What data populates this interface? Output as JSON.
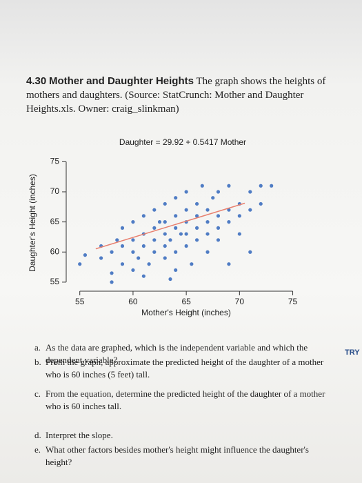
{
  "header": {
    "number": "4.30",
    "title": "Mother and Daughter Heights",
    "text": "The graph shows the heights of mothers and daughters. (Source: StatCrunch: Mother and Daughter Heights.xls. Owner: craig_slinkman)"
  },
  "chart_data": {
    "type": "scatter",
    "title": "Daughter = 29.92 + 0.5417 Mother",
    "xlabel": "Mother's Height (inches)",
    "ylabel": "Daughter's Height (inches)",
    "xlim": [
      54.5,
      76
    ],
    "ylim": [
      54.3,
      75.5
    ],
    "xticks": [
      55,
      60,
      65,
      70,
      75
    ],
    "yticks": [
      55,
      60,
      65,
      70,
      75
    ],
    "series": [
      {
        "type": "scatter",
        "color": "#4f7cc4",
        "x": [
          55,
          55.5,
          57,
          57,
          58,
          58,
          58.5,
          59,
          59,
          59,
          60,
          60,
          60,
          60,
          60.5,
          61,
          61,
          61,
          61.5,
          62,
          62,
          62,
          62,
          62.5,
          63,
          63,
          63,
          63,
          63,
          63.5,
          64,
          64,
          64,
          64,
          64,
          64.5,
          65,
          65,
          65,
          65,
          65,
          65.5,
          66,
          66,
          66,
          66,
          66.5,
          67,
          67,
          67,
          67,
          67.5,
          68,
          68,
          68,
          68,
          69,
          69,
          69,
          69,
          70,
          70,
          70,
          71,
          71,
          71,
          72,
          72,
          73,
          58,
          61,
          63.5
        ],
        "values": [
          58,
          59.5,
          59,
          61,
          56.5,
          60,
          62,
          58,
          61,
          64,
          57,
          60,
          62,
          65,
          59,
          61,
          63,
          66,
          58,
          60,
          62,
          64,
          67,
          65,
          59,
          61,
          63,
          65,
          68,
          62,
          57,
          60,
          64,
          66,
          69,
          63,
          61,
          63,
          65,
          67,
          70,
          58,
          62,
          64,
          66,
          68,
          71,
          60,
          63,
          65,
          67,
          69,
          62,
          64,
          66,
          70,
          58,
          65,
          67,
          71,
          63,
          66,
          68,
          60,
          67,
          70,
          68,
          71,
          71,
          55,
          56,
          55.5
        ]
      },
      {
        "type": "line",
        "color": "#e8806f",
        "x": [
          56.5,
          70.5
        ],
        "values": [
          60.53,
          68.11
        ]
      }
    ]
  },
  "questions": [
    {
      "label": "a.",
      "text": "As the data are graphed, which is the independent variable and which the dependent variable?"
    },
    {
      "label": "b.",
      "text": "From the graph, approximate the predicted height of the daughter of a mother who is 60 inches (5 feet) tall."
    },
    {
      "label": "c.",
      "text": "From the equation, determine the predicted height of the daughter of a mother who is 60 inches tall."
    },
    {
      "label": "d.",
      "text": "Interpret the slope."
    },
    {
      "label": "e.",
      "text": "What other factors besides mother's height might influence the daughter's height?"
    }
  ],
  "side_note": "TRY"
}
